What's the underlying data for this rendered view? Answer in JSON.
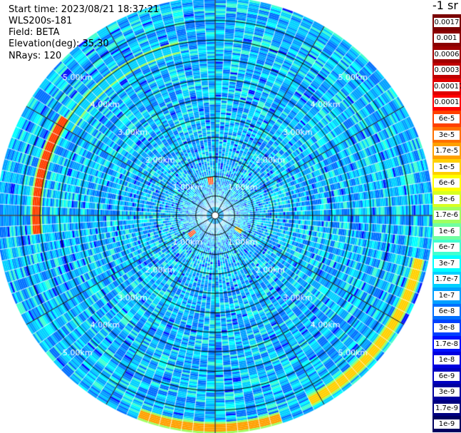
{
  "header": {
    "start_time": "Start time: 2023/08/21 18:37:21",
    "instrument": "WLS200s-181",
    "field": "Field: BETA",
    "elevation": "Elevation(deg): 35.30",
    "nrays": "NRays: 120"
  },
  "colorbar": {
    "unit": "-1 sr",
    "ticks": [
      "0.0017",
      "0.001",
      "0.0006",
      "0.0003",
      "0.00017",
      "0.0001",
      "6e-5",
      "3e-5",
      "1.7e-5",
      "1e-5",
      "6e-6",
      "3e-6",
      "1.7e-6",
      "1e-6",
      "6e-7",
      "3e-7",
      "1.7e-7",
      "1e-7",
      "6e-8",
      "3e-8",
      "1.7e-8",
      "1e-8",
      "6e-9",
      "3e-9",
      "1.7e-9",
      "1e-9"
    ],
    "colors": [
      "#7a0000",
      "#8b0000",
      "#a00000",
      "#c00000",
      "#e00000",
      "#ff0000",
      "#ff4000",
      "#ff7000",
      "#ffa000",
      "#ffd000",
      "#ffff00",
      "#d8ff20",
      "#a0ff60",
      "#70ffa0",
      "#40ffd0",
      "#00ffff",
      "#00d0ff",
      "#00a0ff",
      "#0070ff",
      "#0040ff",
      "#0010ff",
      "#0000e0",
      "#0000c0",
      "#0000a0",
      "#000080",
      "#000060"
    ]
  },
  "chart_data": {
    "type": "heatmap",
    "projection": "polar-ppi",
    "n_rays": 120,
    "range_rings_km": [
      1,
      2,
      3,
      4,
      5
    ],
    "range_labels": [
      "1.00km",
      "2.00km",
      "3.00km",
      "4.00km",
      "5.00km"
    ],
    "max_range_km": 5.6,
    "background_level": "1.7e-7",
    "features": [
      {
        "kind": "arc",
        "range_km": 4.4,
        "azimuth_from_deg": 300,
        "azimuth_to_deg": 345,
        "level": "1e-4"
      },
      {
        "kind": "arc",
        "range_km": 4.6,
        "azimuth_from_deg": 262,
        "azimuth_to_deg": 300,
        "level": "6e-5"
      },
      {
        "kind": "arc",
        "range_km": 5.35,
        "azimuth_from_deg": 100,
        "azimuth_to_deg": 150,
        "level": "1e-5"
      },
      {
        "kind": "arc",
        "range_km": 5.45,
        "azimuth_from_deg": 160,
        "azimuth_to_deg": 200,
        "level": "1.7e-5"
      },
      {
        "kind": "spot",
        "range_km": 0.9,
        "azimuth_deg": 352,
        "level": "6e-5"
      },
      {
        "kind": "spot",
        "range_km": 0.75,
        "azimuth_deg": 230,
        "level": "6e-5"
      },
      {
        "kind": "spot",
        "range_km": 0.7,
        "azimuth_deg": 120,
        "level": "1e-5"
      }
    ]
  }
}
